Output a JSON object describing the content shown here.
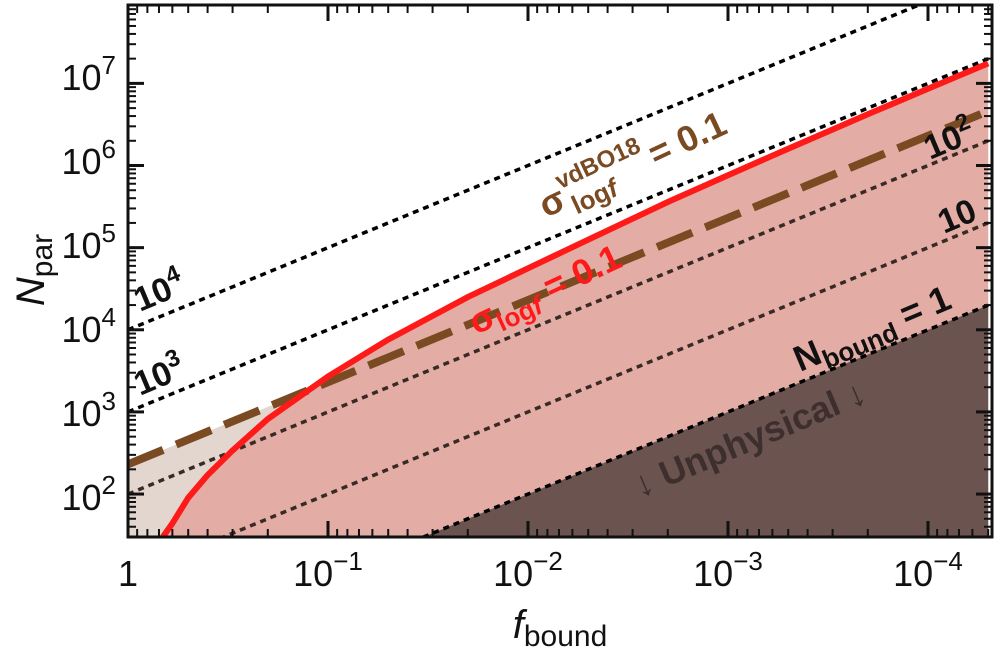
{
  "chart_data": {
    "type": "line",
    "title": "",
    "x_axis": {
      "scale": "log",
      "reversed": true,
      "range": [
        1,
        5e-05
      ],
      "tick_labels": [
        {
          "value": 1,
          "base": "1",
          "exp": ""
        },
        {
          "value": 0.1,
          "base": "10",
          "exp": "−1"
        },
        {
          "value": 0.01,
          "base": "10",
          "exp": "−2"
        },
        {
          "value": 0.001,
          "base": "10",
          "exp": "−3"
        },
        {
          "value": 0.0001,
          "base": "10",
          "exp": "−4"
        }
      ],
      "label_main": "f",
      "label_sub": "bound"
    },
    "y_axis": {
      "scale": "log",
      "range": [
        30,
        90000000
      ],
      "tick_labels": [
        {
          "value": 100,
          "base": "10",
          "exp": "2"
        },
        {
          "value": 1000,
          "base": "10",
          "exp": "3"
        },
        {
          "value": 10000,
          "base": "10",
          "exp": "4"
        },
        {
          "value": 100000,
          "base": "10",
          "exp": "5"
        },
        {
          "value": 1000000,
          "base": "10",
          "exp": "6"
        },
        {
          "value": 10000000,
          "base": "10",
          "exp": "7"
        }
      ],
      "label_main": "N",
      "label_sub": "par"
    },
    "grid": false,
    "series": [
      {
        "style": "black dotted",
        "nbound": 10000,
        "points": [
          [
            1,
            10000
          ],
          [
            5e-05,
            200000000
          ]
        ]
      },
      {
        "style": "black dotted",
        "nbound": 1000,
        "points": [
          [
            1,
            1000
          ],
          [
            5e-05,
            20000000
          ]
        ]
      },
      {
        "style": "dark dotted",
        "nbound": 100,
        "points": [
          [
            1,
            100
          ],
          [
            5e-05,
            2000000
          ]
        ]
      },
      {
        "style": "dark dotted",
        "nbound": 10,
        "points": [
          [
            1,
            10
          ],
          [
            5e-05,
            200000
          ]
        ]
      },
      {
        "style": "black dotted",
        "nbound": 1,
        "points": [
          [
            1,
            1
          ],
          [
            5e-05,
            20000
          ]
        ]
      },
      {
        "style": "brown dashed",
        "name_label": "σ_log f^vdBO18 = 0.1",
        "points": [
          [
            1,
            230
          ],
          [
            5e-05,
            4600000
          ]
        ]
      },
      {
        "style": "red solid",
        "name_label": "σ_log f = 0.1",
        "points": [
          [
            0.67,
            30
          ],
          [
            0.6,
            44
          ],
          [
            0.5,
            90
          ],
          [
            0.4,
            170
          ],
          [
            0.3,
            340
          ],
          [
            0.2,
            820
          ],
          [
            0.1,
            2700
          ],
          [
            0.05,
            7600
          ],
          [
            0.02,
            25000
          ],
          [
            0.01,
            56000
          ],
          [
            0.005,
            125000
          ],
          [
            0.002,
            360000
          ],
          [
            0.001,
            760000
          ],
          [
            0.0005,
            1600000
          ],
          [
            0.0002,
            4200000
          ],
          [
            0.0001,
            8600000
          ],
          [
            5e-05,
            17500000
          ]
        ]
      }
    ],
    "regions": [
      {
        "name": "below brown dashed",
        "color": "#e2d6cf"
      },
      {
        "name": "below red solid",
        "color": "#e3aca5"
      },
      {
        "name": "unphysical",
        "color": "#6b5350"
      }
    ],
    "annotations": {
      "n1e4": {
        "base": "10",
        "exp": "4"
      },
      "n1e3": {
        "base": "10",
        "exp": "3"
      },
      "n1e2": {
        "base": "10",
        "exp": "2"
      },
      "n1e1": "10",
      "nbound": {
        "main": "N",
        "sub": "bound",
        "rest": " = 1"
      },
      "unphysical": "↓ Unphysical ↓",
      "sigma_red": {
        "main": "σ",
        "sub": "log",
        "sub_italic": "f",
        "rest": " = 0.1"
      },
      "sigma_brown": {
        "main": "σ",
        "sup": "vdBO18",
        "sub": "log",
        "sub_italic": "f",
        "rest": "  = 0.1"
      }
    },
    "colors": {
      "red_curve": "#ff1a1a",
      "brown_dashed": "#7a4a22",
      "dark_dotted": "#3a2a25",
      "black_dotted": "#000000"
    }
  }
}
